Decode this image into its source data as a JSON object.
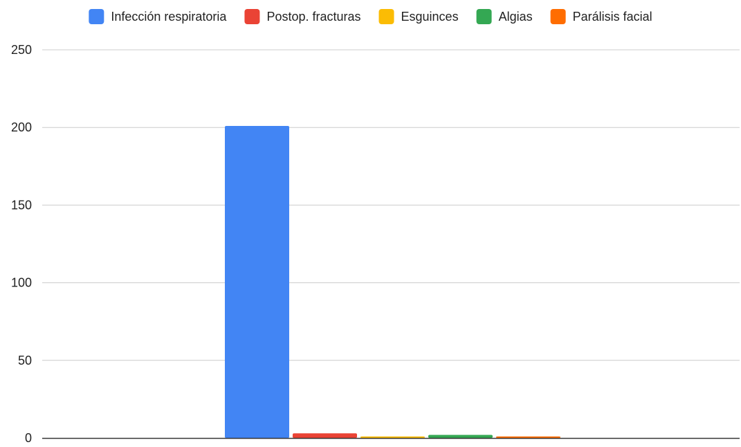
{
  "chart_data": {
    "type": "bar",
    "categories": [
      ""
    ],
    "series": [
      {
        "name": "Infección respiratoria",
        "color": "#4285f4",
        "values": [
          201
        ]
      },
      {
        "name": "Postop. fracturas",
        "color": "#ea4335",
        "values": [
          3
        ]
      },
      {
        "name": "Esguinces",
        "color": "#fbbc04",
        "values": [
          1
        ]
      },
      {
        "name": "Algias",
        "color": "#34a853",
        "values": [
          2
        ]
      },
      {
        "name": "Parálisis facial",
        "color": "#ff6d01",
        "values": [
          1
        ]
      }
    ],
    "ylim": [
      0,
      250
    ],
    "yticks": [
      0,
      50,
      100,
      150,
      200,
      250
    ],
    "grid": true,
    "legend_position": "top",
    "title": "",
    "xlabel": "",
    "ylabel": ""
  }
}
